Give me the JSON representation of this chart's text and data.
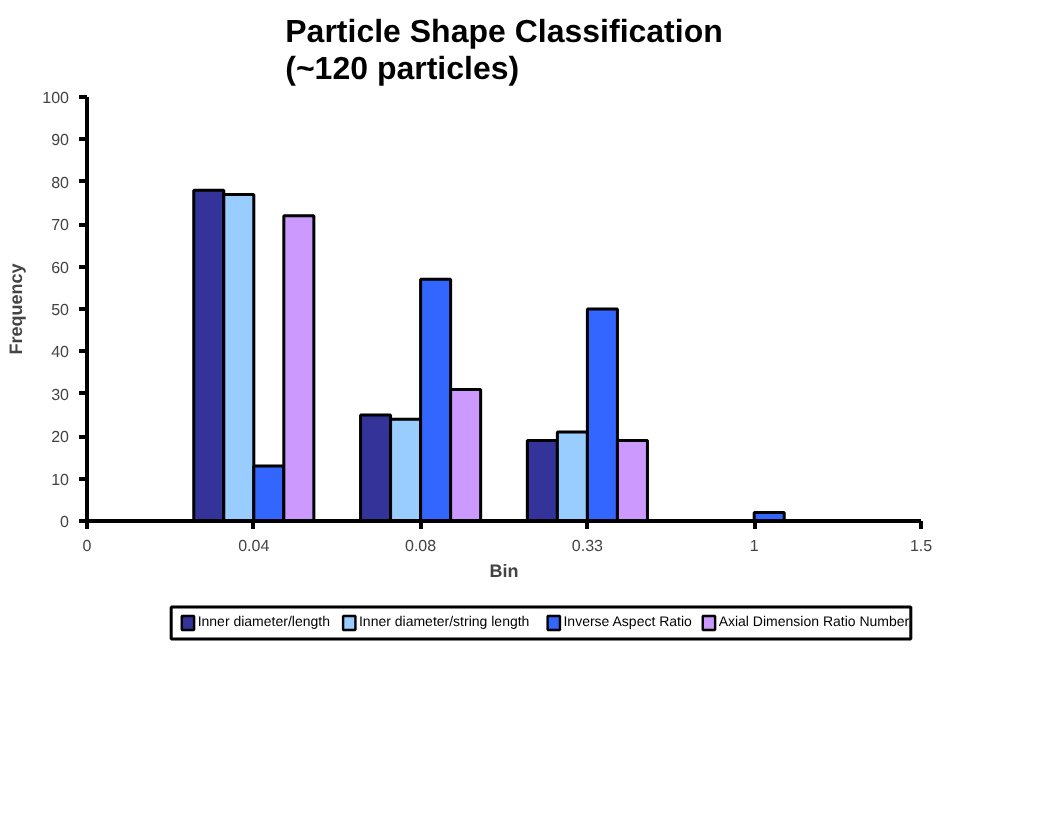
{
  "chart_data": {
    "type": "bar",
    "title": "Particle Shape Classification\n(~120 particles)",
    "xlabel": "Bin",
    "ylabel": "Frequency",
    "categories": [
      "0",
      "0.04",
      "0.08",
      "0.33",
      "1",
      "1.5"
    ],
    "series": [
      {
        "name": "Inner diameter/length",
        "color": "#333399",
        "values": [
          null,
          78,
          25,
          19,
          null,
          null
        ]
      },
      {
        "name": "Inner diameter/string length",
        "color": "#99ccff",
        "values": [
          null,
          77,
          24,
          21,
          null,
          null
        ]
      },
      {
        "name": "Inverse Aspect Ratio",
        "color": "#3366ff",
        "values": [
          null,
          13,
          57,
          50,
          2,
          null
        ]
      },
      {
        "name": "Axial Dimension Ratio Number",
        "color": "#cc99ff",
        "values": [
          null,
          72,
          31,
          19,
          null,
          null
        ]
      }
    ],
    "ylim": [
      0,
      100
    ],
    "yticks": [
      0,
      10,
      20,
      30,
      40,
      50,
      60,
      70,
      80,
      90,
      100
    ],
    "grid": false,
    "legend": "bottom"
  }
}
